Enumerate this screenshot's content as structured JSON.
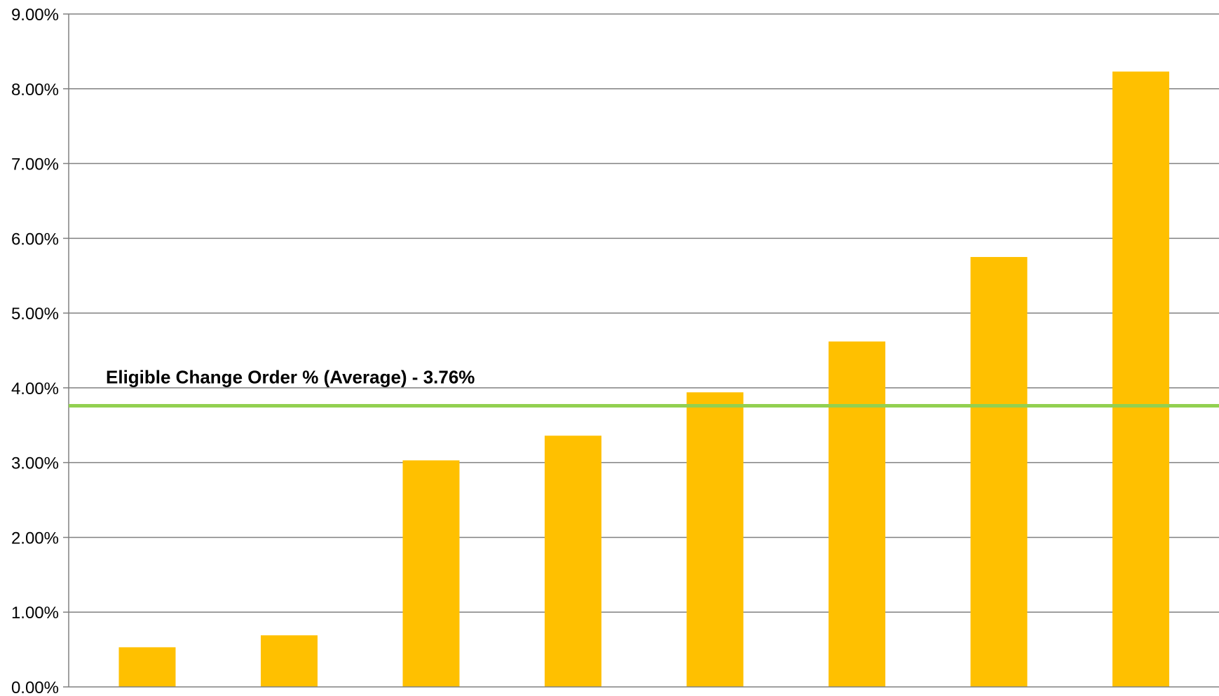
{
  "chart_data": {
    "type": "bar",
    "title": "",
    "xlabel": "",
    "ylabel": "",
    "categories": [
      "",
      "",
      "",
      "",
      "",
      "",
      "",
      ""
    ],
    "values": [
      0.53,
      0.69,
      3.03,
      3.36,
      3.94,
      4.62,
      5.75,
      8.23
    ],
    "ylim": [
      0,
      9
    ],
    "y_ticks": [
      0,
      1,
      2,
      3,
      4,
      5,
      6,
      7,
      8,
      9
    ],
    "y_tick_labels": [
      "0.00%",
      "1.00%",
      "2.00%",
      "3.00%",
      "4.00%",
      "5.00%",
      "6.00%",
      "7.00%",
      "8.00%",
      "9.00%"
    ],
    "grid": true,
    "legend": "none",
    "reference_line": {
      "value": 3.76,
      "label": "Eligible Change Order % (Average) - 3.76%",
      "color": "#92D050"
    },
    "bar_color": "#FFC000",
    "grid_color": "#808080"
  }
}
